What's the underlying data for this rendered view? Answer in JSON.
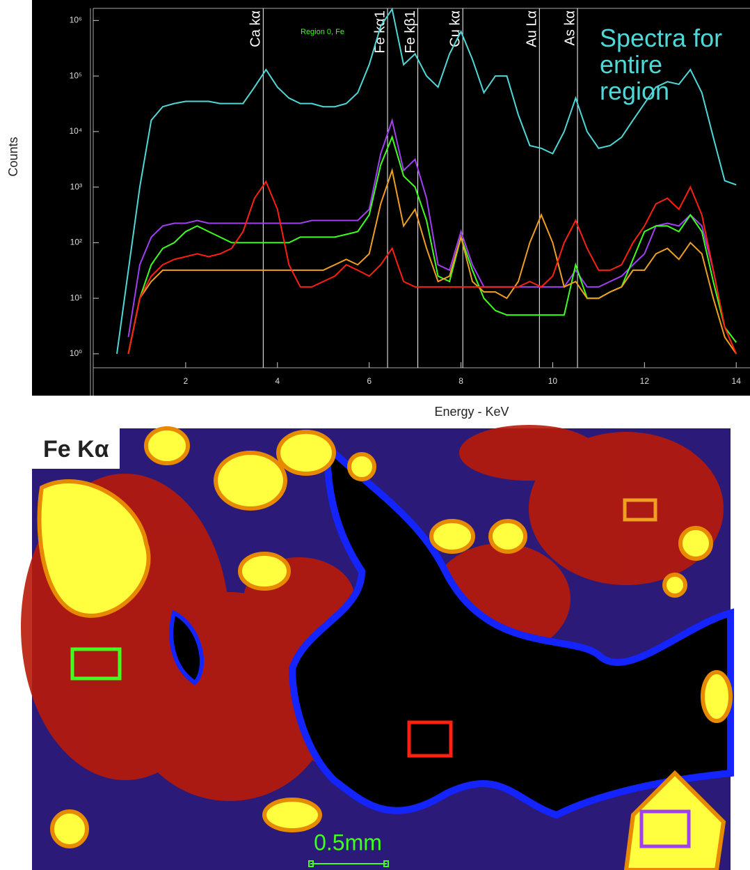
{
  "chart_data": {
    "type": "line",
    "log_y": true,
    "y_label": "Counts",
    "x_label": "Energy - KeV",
    "xlim": [
      0,
      14.3
    ],
    "ylim": [
      0.56,
      1650000
    ],
    "xticks": [
      2,
      4,
      6,
      8,
      10,
      12,
      14
    ],
    "yticks": [
      {
        "value": 1,
        "label": "10⁰"
      },
      {
        "value": 10,
        "label": "10¹"
      },
      {
        "value": 100,
        "label": "10²"
      },
      {
        "value": 1000,
        "label": "10³"
      },
      {
        "value": 10000,
        "label": "10⁴"
      },
      {
        "value": 100000,
        "label": "10⁵"
      },
      {
        "value": 1000000,
        "label": "10⁶"
      }
    ],
    "annotations": [
      {
        "label": "Ca kα",
        "x": 3.69
      },
      {
        "label": "Fe kα1",
        "x": 6.4
      },
      {
        "label": "Fe kβ1",
        "x": 7.06
      },
      {
        "label": "Cu kα",
        "x": 8.04
      },
      {
        "label": "Au Lα",
        "x": 9.71
      },
      {
        "label": "As kα",
        "x": 10.54
      }
    ],
    "x": [
      0.5,
      0.75,
      1,
      1.25,
      1.5,
      1.75,
      2,
      2.25,
      2.5,
      2.75,
      3,
      3.25,
      3.5,
      3.75,
      4,
      4.25,
      4.5,
      4.75,
      5,
      5.25,
      5.5,
      5.75,
      6,
      6.25,
      6.5,
      6.75,
      7,
      7.25,
      7.5,
      7.75,
      8,
      8.25,
      8.5,
      8.75,
      9,
      9.25,
      9.5,
      9.75,
      10,
      10.25,
      10.5,
      10.75,
      11,
      11.25,
      11.5,
      11.75,
      12,
      12.25,
      12.5,
      12.75,
      13,
      13.25,
      13.5,
      13.75,
      14
    ],
    "series": [
      {
        "name": "Spectra for entire region",
        "color": "#4fd8d8",
        "values": [
          1,
          32,
          1000,
          16000,
          28000,
          32000,
          35000,
          35000,
          35000,
          32000,
          32000,
          32000,
          63000,
          130000,
          63000,
          40000,
          32000,
          32000,
          28000,
          28000,
          32000,
          50000,
          160000,
          790000,
          1600000,
          160000,
          250000,
          100000,
          63000,
          250000,
          630000,
          200000,
          50000,
          100000,
          100000,
          20000,
          5600,
          5000,
          4000,
          10000,
          40000,
          10000,
          5000,
          5600,
          7900,
          16000,
          32000,
          63000,
          79000,
          71000,
          130000,
          50000,
          7900,
          1300,
          1100
        ]
      },
      {
        "color": "#a040f0",
        "values": [
          null,
          2,
          40,
          126,
          200,
          224,
          224,
          251,
          224,
          224,
          224,
          224,
          224,
          224,
          224,
          224,
          224,
          251,
          251,
          251,
          251,
          251,
          398,
          3981,
          15849,
          1995,
          3162,
          631,
          40,
          32,
          158,
          40,
          16,
          16,
          16,
          16,
          16,
          16,
          16,
          16,
          32,
          16,
          16,
          20,
          25,
          40,
          63,
          200,
          224,
          200,
          316,
          200,
          32,
          3,
          1
        ]
      },
      {
        "name": "Region 0, Fe",
        "color": "#40ff20",
        "values": [
          null,
          1,
          10,
          40,
          79,
          100,
          158,
          200,
          158,
          126,
          100,
          100,
          100,
          100,
          100,
          100,
          126,
          126,
          126,
          126,
          141,
          158,
          316,
          2512,
          7943,
          1585,
          1000,
          251,
          25,
          20,
          126,
          32,
          10,
          6,
          5,
          5,
          5,
          5,
          5,
          5,
          40,
          10,
          10,
          13,
          16,
          50,
          158,
          200,
          200,
          158,
          316,
          158,
          20,
          3,
          1.6
        ]
      },
      {
        "color": "#f0a020",
        "values": [
          null,
          1,
          10,
          20,
          32,
          32,
          32,
          32,
          32,
          32,
          32,
          32,
          32,
          32,
          32,
          32,
          32,
          32,
          32,
          40,
          50,
          40,
          63,
          501,
          1995,
          200,
          398,
          79,
          20,
          25,
          126,
          20,
          13,
          13,
          10,
          20,
          100,
          316,
          100,
          16,
          20,
          10,
          10,
          13,
          16,
          32,
          32,
          63,
          79,
          50,
          100,
          63,
          10,
          2,
          1
        ]
      },
      {
        "color": "#ff2010",
        "values": [
          null,
          1,
          10,
          25,
          40,
          50,
          56,
          63,
          56,
          63,
          79,
          158,
          631,
          1259,
          398,
          40,
          16,
          16,
          20,
          25,
          40,
          32,
          25,
          40,
          79,
          20,
          16,
          16,
          16,
          16,
          16,
          16,
          16,
          16,
          16,
          16,
          20,
          16,
          25,
          100,
          251,
          79,
          32,
          32,
          40,
          100,
          200,
          501,
          631,
          398,
          1000,
          316,
          32,
          3,
          1
        ]
      }
    ]
  },
  "map": {
    "title": "Fe Kα",
    "scale_bar": "0.5mm"
  }
}
